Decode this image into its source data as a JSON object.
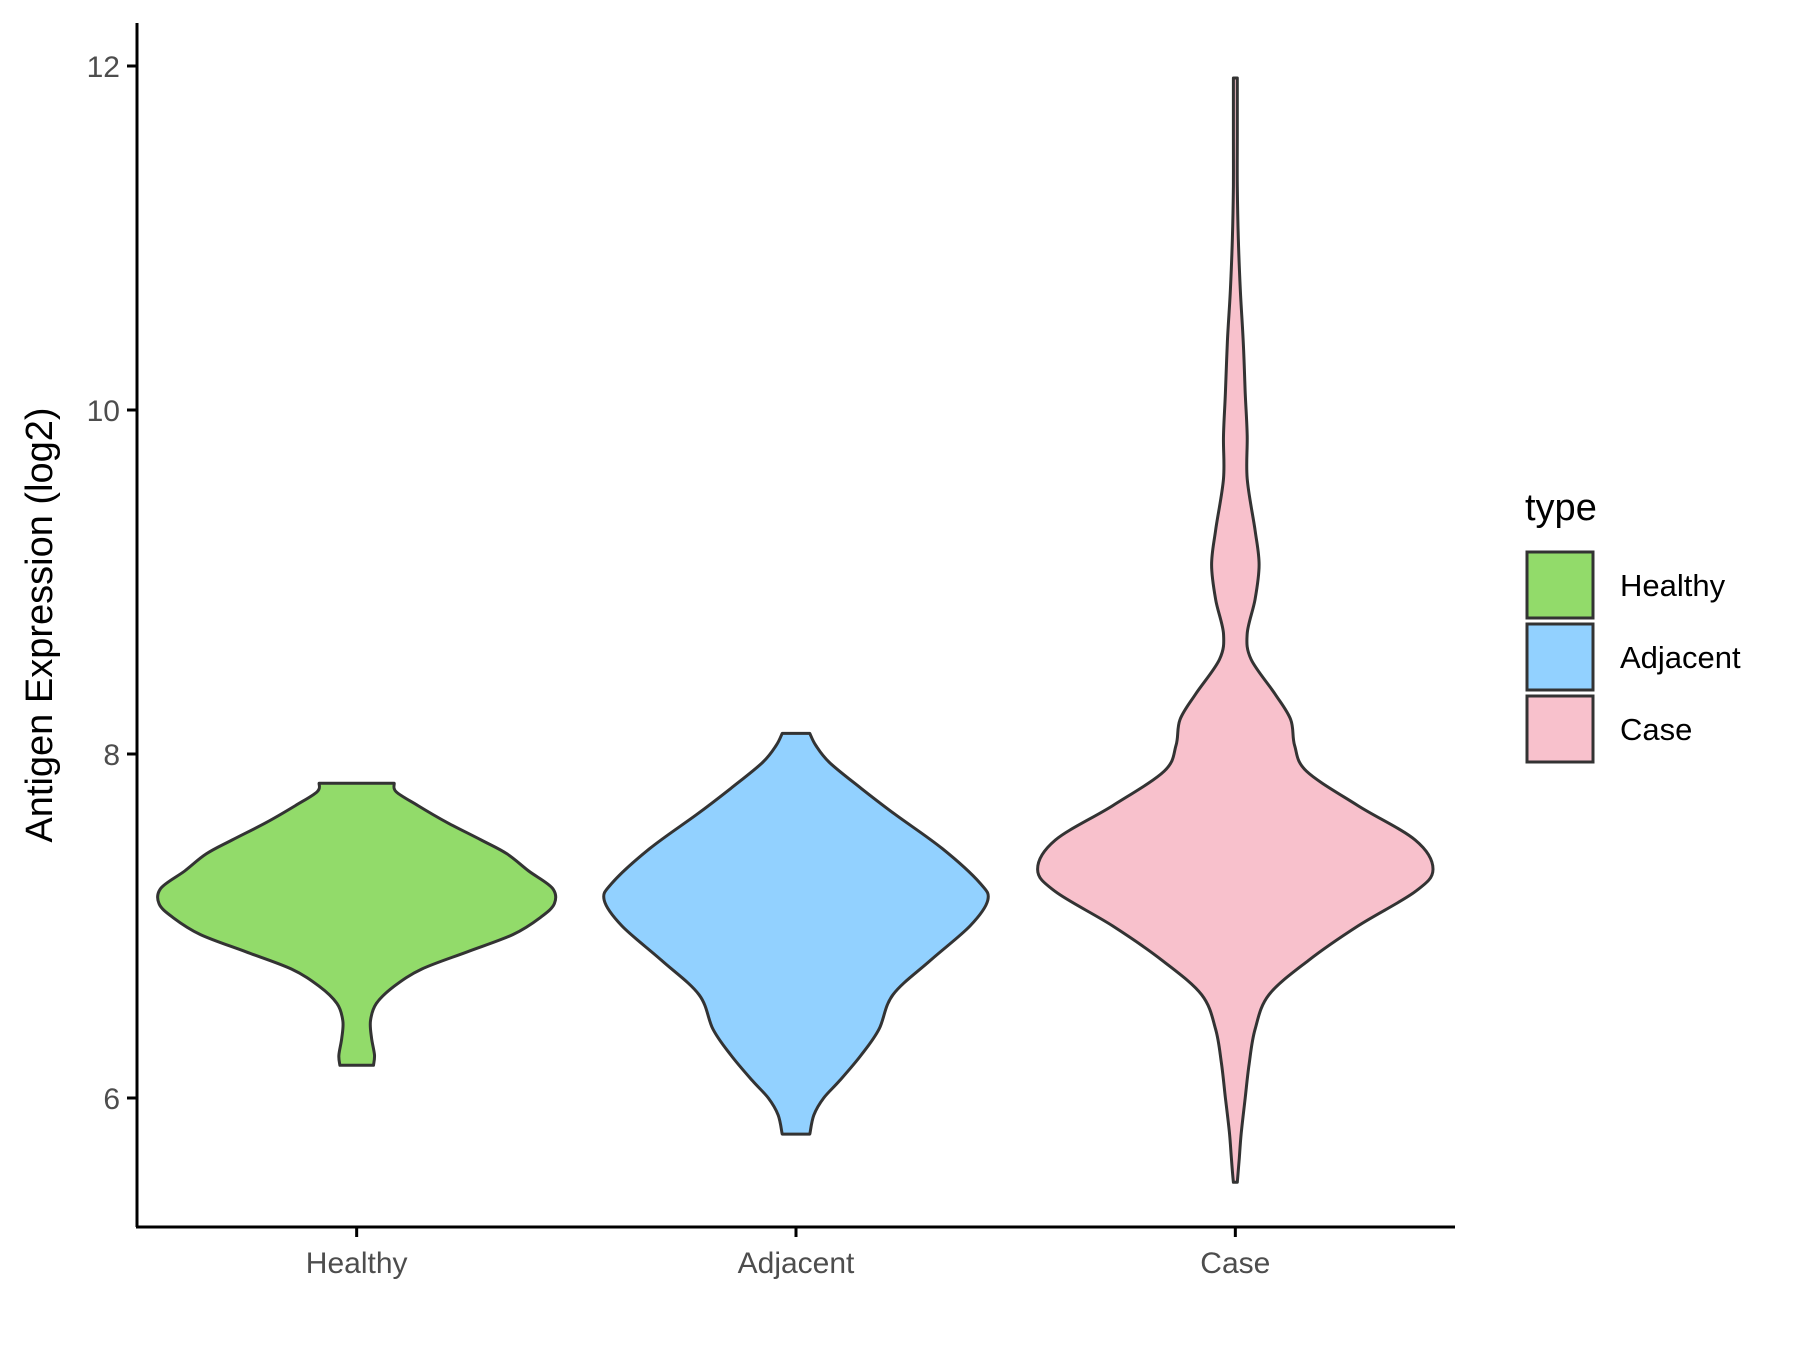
{
  "chart_data": {
    "type": "violin",
    "title": "",
    "xlabel": "",
    "ylabel": "Antigen Expression (log2)",
    "categories": [
      "Healthy",
      "Adjacent",
      "Case"
    ],
    "ylim": [
      5.25,
      12.25
    ],
    "yticks": [
      6,
      8,
      10,
      12
    ],
    "grid": false,
    "legend": {
      "title": "type",
      "position": "right",
      "entries": [
        "Healthy",
        "Adjacent",
        "Case"
      ]
    },
    "series": [
      {
        "category": "Healthy",
        "color": "#92DB6A",
        "min": 6.19,
        "max": 7.83,
        "density": [
          [
            6.19,
            0.085
          ],
          [
            6.25,
            0.09
          ],
          [
            6.35,
            0.075
          ],
          [
            6.45,
            0.07
          ],
          [
            6.55,
            0.1
          ],
          [
            6.65,
            0.19
          ],
          [
            6.75,
            0.33
          ],
          [
            6.85,
            0.56
          ],
          [
            6.95,
            0.79
          ],
          [
            7.05,
            0.93
          ],
          [
            7.13,
            1.0
          ],
          [
            7.22,
            0.99
          ],
          [
            7.32,
            0.87
          ],
          [
            7.42,
            0.76
          ],
          [
            7.5,
            0.63
          ],
          [
            7.6,
            0.46
          ],
          [
            7.7,
            0.31
          ],
          [
            7.78,
            0.2
          ],
          [
            7.83,
            0.19
          ]
        ]
      },
      {
        "category": "Adjacent",
        "color": "#92D1FF",
        "min": 5.79,
        "max": 8.12,
        "density": [
          [
            5.79,
            0.07
          ],
          [
            5.9,
            0.09
          ],
          [
            6.0,
            0.14
          ],
          [
            6.1,
            0.22
          ],
          [
            6.25,
            0.33
          ],
          [
            6.4,
            0.42
          ],
          [
            6.6,
            0.49
          ],
          [
            6.8,
            0.68
          ],
          [
            7.0,
            0.88
          ],
          [
            7.15,
            0.97
          ],
          [
            7.25,
            0.93
          ],
          [
            7.45,
            0.74
          ],
          [
            7.65,
            0.5
          ],
          [
            7.8,
            0.33
          ],
          [
            7.95,
            0.17
          ],
          [
            8.05,
            0.1
          ],
          [
            8.12,
            0.07
          ]
        ]
      },
      {
        "category": "Case",
        "color": "#F8C1CC",
        "min": 5.51,
        "max": 11.93,
        "density": [
          [
            5.51,
            0.01
          ],
          [
            5.65,
            0.02
          ],
          [
            5.8,
            0.03
          ],
          [
            6.0,
            0.05
          ],
          [
            6.2,
            0.07
          ],
          [
            6.4,
            0.1
          ],
          [
            6.6,
            0.17
          ],
          [
            6.8,
            0.37
          ],
          [
            7.0,
            0.62
          ],
          [
            7.2,
            0.91
          ],
          [
            7.33,
            1.0
          ],
          [
            7.5,
            0.91
          ],
          [
            7.7,
            0.62
          ],
          [
            7.9,
            0.36
          ],
          [
            8.05,
            0.3
          ],
          [
            8.2,
            0.28
          ],
          [
            8.35,
            0.2
          ],
          [
            8.55,
            0.08
          ],
          [
            8.7,
            0.06
          ],
          [
            8.9,
            0.1
          ],
          [
            9.1,
            0.12
          ],
          [
            9.3,
            0.1
          ],
          [
            9.6,
            0.06
          ],
          [
            9.85,
            0.06
          ],
          [
            10.1,
            0.05
          ],
          [
            10.4,
            0.04
          ],
          [
            10.7,
            0.025
          ],
          [
            11.0,
            0.015
          ],
          [
            11.3,
            0.01
          ],
          [
            11.6,
            0.01
          ],
          [
            11.93,
            0.01
          ]
        ]
      }
    ]
  }
}
